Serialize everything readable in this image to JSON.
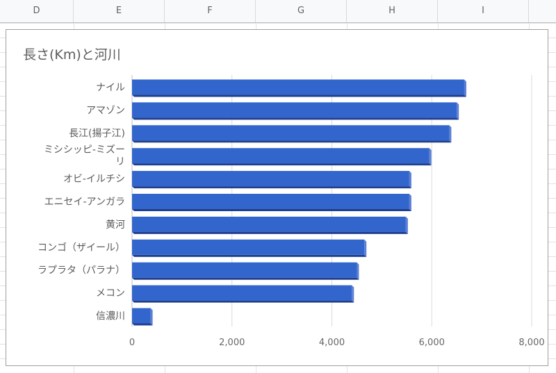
{
  "columns": [
    "D",
    "E",
    "F",
    "G",
    "H",
    "I"
  ],
  "chart_data": {
    "type": "bar",
    "orientation": "horizontal",
    "title": "長さ(Km)と河川",
    "categories": [
      [
        "ナイル"
      ],
      [
        "アマゾン"
      ],
      [
        "長江(揚子江)"
      ],
      [
        "ミシシッピ-ミズー",
        "リ"
      ],
      [
        "オビ-イルチシ"
      ],
      [
        "エニセイ-アンガラ"
      ],
      [
        "黄河"
      ],
      [
        "コンゴ（ザイール）"
      ],
      [
        "ラプラタ（パラナ）"
      ],
      [
        "メコン"
      ],
      [
        "信濃川"
      ]
    ],
    "values": [
      6650,
      6500,
      6350,
      5950,
      5550,
      5550,
      5480,
      4650,
      4500,
      4400,
      370
    ],
    "xlim": [
      0,
      8000
    ],
    "xticks": [
      0,
      2000,
      4000,
      6000,
      8000
    ],
    "xtick_labels": [
      "0",
      "2,000",
      "4,000",
      "6,000",
      "8,000"
    ],
    "grid": true,
    "bar_color": "#3366cc",
    "bar_dark_color": "#1f3f8f",
    "bar_side_color": "#5b80d6"
  }
}
